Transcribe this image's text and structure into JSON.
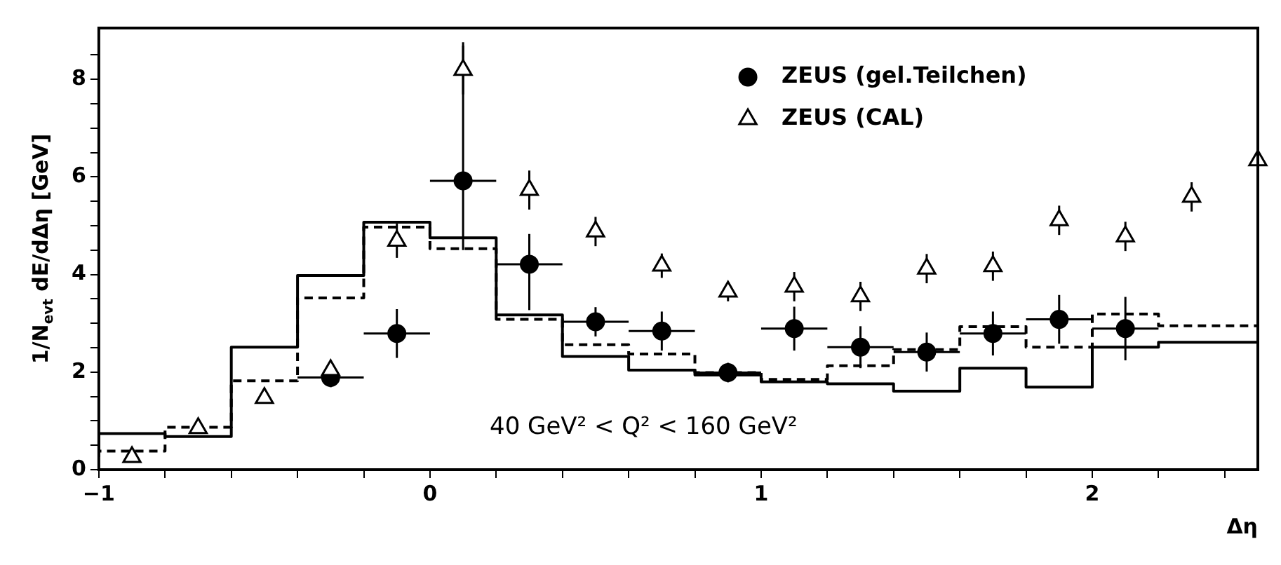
{
  "chart_data": {
    "type": "scatter",
    "xlabel": "Δη",
    "ylabel": "1/N$_{evt}$ dE/dΔη [GeV]",
    "xlim": [
      -1,
      2.5
    ],
    "ylim": [
      0,
      9.05
    ],
    "xticks": [
      -1,
      {
        "value": -0.8,
        "label": null
      },
      {
        "value": -0.6,
        "label": null
      },
      {
        "value": -0.4,
        "label": null
      },
      {
        "value": -0.2,
        "label": null
      },
      0,
      {
        "value": 0.2,
        "label": null
      },
      {
        "value": 0.4,
        "label": null
      },
      {
        "value": 0.6,
        "label": null
      },
      {
        "value": 0.8,
        "label": null
      },
      1,
      {
        "value": 1.2,
        "label": null
      },
      {
        "value": 1.4,
        "label": null
      },
      {
        "value": 1.6,
        "label": null
      },
      {
        "value": 1.8,
        "label": null
      },
      2,
      {
        "value": 2.2,
        "label": null
      },
      {
        "value": 2.4,
        "label": null
      }
    ],
    "yticks": [
      0,
      {
        "value": 0.5,
        "label": null
      },
      {
        "value": 1,
        "label": null
      },
      {
        "value": 1.5,
        "label": null
      },
      2,
      {
        "value": 2.5,
        "label": null
      },
      {
        "value": 3,
        "label": null
      },
      {
        "value": 3.5,
        "label": null
      },
      4,
      {
        "value": 4.5,
        "label": null
      },
      {
        "value": 5,
        "label": null
      },
      {
        "value": 5.5,
        "label": null
      },
      6,
      {
        "value": 6.5,
        "label": null
      },
      {
        "value": 7,
        "label": null
      },
      {
        "value": 7.5,
        "label": null
      },
      8,
      {
        "value": 8.5,
        "label": null
      }
    ],
    "grid": false,
    "legend": "top right",
    "annotations": [
      "40 GeV² < Q² < 160 GeV²"
    ],
    "series": [
      {
        "type": "step",
        "line_style": "solid",
        "color": "#000000",
        "x": [
          -1,
          -0.8,
          -0.6,
          -0.4,
          -0.2,
          0,
          0.2,
          0.4,
          0.6,
          0.8,
          1.0,
          1.2,
          1.4,
          1.6,
          1.8,
          2.0,
          2.2,
          2.4,
          2.5
        ],
        "values": [
          0.33,
          0.74,
          0.68,
          2.51,
          3.98,
          5.07,
          4.75,
          3.17,
          2.32,
          2.04,
          1.94,
          1.8,
          1.76,
          1.61,
          2.08,
          1.69,
          2.51,
          2.61,
          2.61
        ]
      },
      {
        "type": "step",
        "line_style": "dashed",
        "color": "#000000",
        "x": [
          -1,
          -0.8,
          -0.6,
          -0.4,
          -0.2,
          0,
          0.2,
          0.4,
          0.6,
          0.8,
          1.0,
          1.2,
          1.4,
          1.6,
          1.8,
          2.0,
          2.2,
          2.4,
          2.5
        ],
        "values": [
          0.26,
          0.38,
          0.87,
          1.82,
          3.52,
          4.97,
          4.53,
          3.08,
          2.56,
          2.37,
          1.99,
          1.85,
          2.13,
          2.46,
          2.93,
          2.51,
          3.19,
          2.95,
          2.95
        ]
      },
      {
        "type": "scatter",
        "name": "ZEUS (gel.Teilchen)",
        "marker": "circle",
        "color": "#000000",
        "x": [
          -0.3,
          -0.1,
          0.1,
          0.3,
          0.5,
          0.7,
          0.9,
          1.1,
          1.3,
          1.5,
          1.7,
          1.9,
          2.1
        ],
        "values": [
          1.89,
          2.79,
          5.92,
          4.21,
          3.03,
          2.84,
          1.99,
          2.89,
          2.51,
          2.41,
          2.79,
          3.08,
          2.89
        ],
        "errors": [
          0.2,
          0.5,
          [
            4.5,
            8.76
          ],
          [
            3.27,
            4.83
          ],
          0.3,
          0.4,
          0.2,
          0.45,
          0.43,
          0.4,
          0.45,
          0.5,
          0.65
        ],
        "xerrors": [
          0.1,
          0.1,
          0.1,
          0.1,
          0.1,
          0.1,
          0.1,
          0.1,
          0.1,
          0.1,
          0.1,
          0.1,
          0.1
        ]
      },
      {
        "type": "scatter",
        "name": "ZEUS (CAL)",
        "marker": "triangle",
        "color": "#000000",
        "x": [
          -0.9,
          -0.7,
          -0.5,
          -0.3,
          -0.1,
          0.1,
          0.3,
          0.5,
          0.7,
          0.9,
          1.1,
          1.3,
          1.5,
          1.7,
          1.9,
          2.1,
          2.3,
          2.5
        ],
        "values": [
          0.26,
          0.85,
          1.47,
          2.04,
          4.69,
          8.19,
          5.73,
          4.88,
          4.18,
          3.65,
          3.75,
          3.55,
          4.12,
          4.17,
          5.11,
          4.78,
          5.59,
          6.34
        ],
        "errors": [
          null,
          null,
          null,
          0.15,
          0.35,
          0.5,
          0.4,
          0.3,
          0.25,
          0.2,
          0.3,
          0.3,
          0.3,
          0.3,
          0.3,
          0.3,
          0.3,
          null
        ]
      }
    ]
  }
}
